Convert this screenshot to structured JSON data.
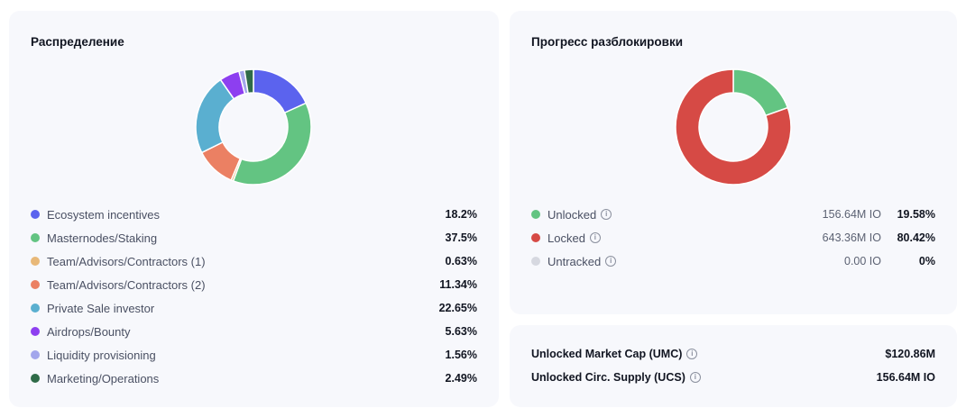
{
  "distribution": {
    "title": "Распределение",
    "items": [
      {
        "label": "Ecosystem incentives",
        "value": "18.2%",
        "pct": 18.2,
        "color": "#5b63ee"
      },
      {
        "label": "Masternodes/Staking",
        "value": "37.5%",
        "pct": 37.5,
        "color": "#63c482"
      },
      {
        "label": "Team/Advisors/Contractors (1)",
        "value": "0.63%",
        "pct": 0.63,
        "color": "#e8b878"
      },
      {
        "label": "Team/Advisors/Contractors (2)",
        "value": "11.34%",
        "pct": 11.34,
        "color": "#eb8063"
      },
      {
        "label": "Private Sale investor",
        "value": "22.65%",
        "pct": 22.65,
        "color": "#5aafd0"
      },
      {
        "label": "Airdrops/Bounty",
        "value": "5.63%",
        "pct": 5.63,
        "color": "#8d3ff0"
      },
      {
        "label": "Liquidity provisioning",
        "value": "1.56%",
        "pct": 1.56,
        "color": "#a3a6ec"
      },
      {
        "label": "Marketing/Operations",
        "value": "2.49%",
        "pct": 2.49,
        "color": "#2f6b48"
      }
    ]
  },
  "unlock": {
    "title": "Прогресс разблокировки",
    "items": [
      {
        "label": "Unlocked",
        "amount": "156.64M IO",
        "value": "19.58%",
        "pct": 19.58,
        "color": "#63c482"
      },
      {
        "label": "Locked",
        "amount": "643.36M IO",
        "value": "80.42%",
        "pct": 80.42,
        "color": "#d64a45"
      },
      {
        "label": "Untracked",
        "amount": "0.00 IO",
        "value": "0%",
        "pct": 0,
        "color": "#d6d8e0"
      }
    ]
  },
  "market": {
    "items": [
      {
        "label": "Unlocked Market Cap (UMC)",
        "value": "$120.86M"
      },
      {
        "label": "Unlocked Circ. Supply (UCS)",
        "value": "156.64M IO"
      }
    ]
  },
  "icons": {
    "info": "info-circle-icon"
  }
}
